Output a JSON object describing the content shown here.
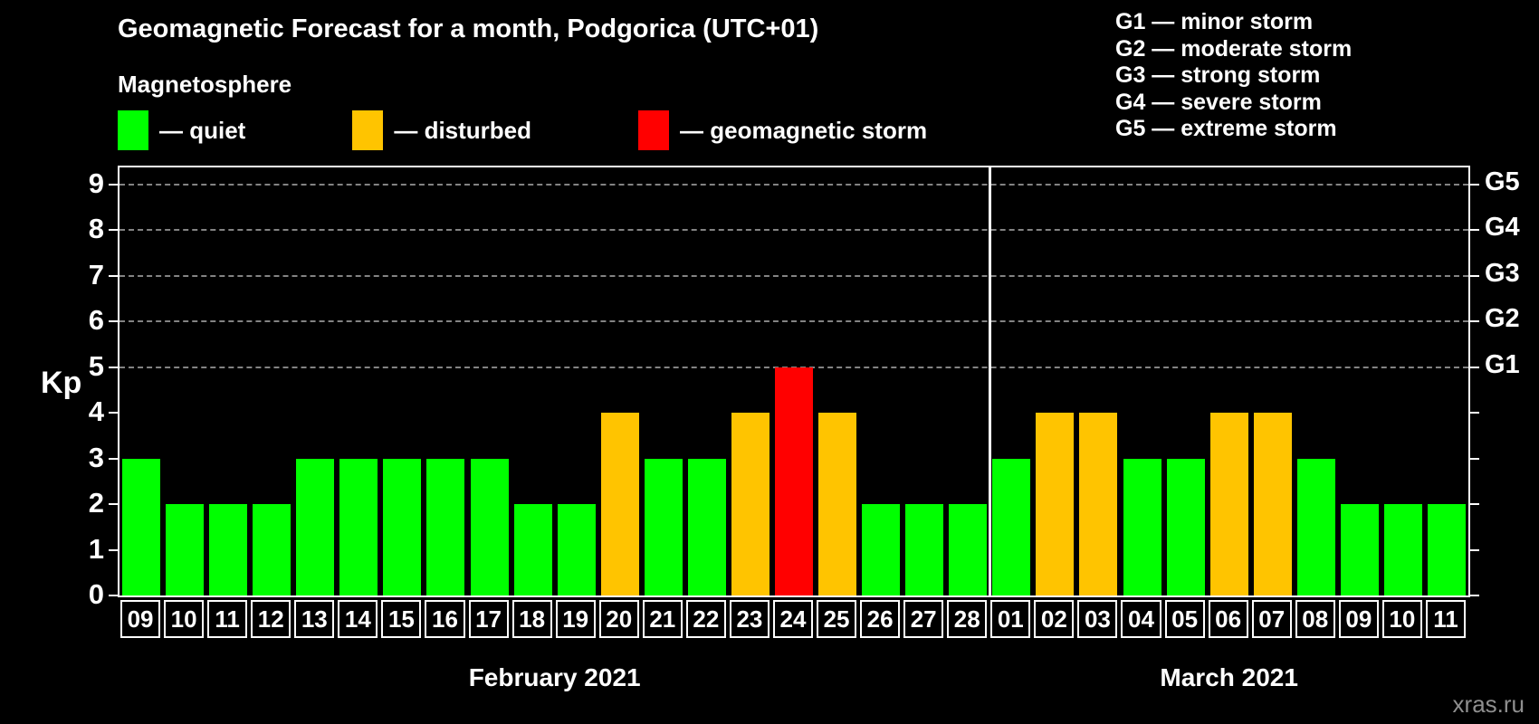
{
  "title": "Geomagnetic Forecast for a month, Podgorica (UTC+01)",
  "subtitle": "Magnetosphere",
  "legend": {
    "items": [
      {
        "name": "quiet",
        "label": "— quiet",
        "color": "#00ff00"
      },
      {
        "name": "disturbed",
        "label": "— disturbed",
        "color": "#ffc400"
      },
      {
        "name": "storm",
        "label": "— geomagnetic storm",
        "color": "#ff0000"
      }
    ]
  },
  "storm_legend": [
    "G1 — minor storm",
    "G2 — moderate storm",
    "G3 — strong storm",
    "G4 — severe storm",
    "G5 — extreme storm"
  ],
  "watermark": "xras.ru",
  "chart_data": {
    "type": "bar",
    "title": "Geomagnetic Forecast for a month, Podgorica (UTC+01)",
    "ylabel": "Kp",
    "ylim": [
      0,
      9.4
    ],
    "yticks": [
      0,
      1,
      2,
      3,
      4,
      5,
      6,
      7,
      8,
      9
    ],
    "gridlines": [
      5,
      6,
      7,
      8,
      9
    ],
    "grid_style": "dashed",
    "legend_position": "top",
    "right_axis": [
      {
        "kp": 5,
        "label": "G1"
      },
      {
        "kp": 6,
        "label": "G2"
      },
      {
        "kp": 7,
        "label": "G3"
      },
      {
        "kp": 8,
        "label": "G4"
      },
      {
        "kp": 9,
        "label": "G5"
      }
    ],
    "colors": {
      "quiet": "#00ff00",
      "disturbed": "#ffc400",
      "storm": "#ff0000"
    },
    "color_rule": {
      "quiet_max": 3,
      "disturbed_value": 4,
      "storm_min": 5
    },
    "months": [
      {
        "label": "February 2021",
        "categories": [
          "09",
          "10",
          "11",
          "12",
          "13",
          "14",
          "15",
          "16",
          "17",
          "18",
          "19",
          "20",
          "21",
          "22",
          "23",
          "24",
          "25",
          "26",
          "27",
          "28"
        ],
        "values": [
          3,
          2,
          2,
          2,
          3,
          3,
          3,
          3,
          3,
          2,
          2,
          4,
          3,
          3,
          4,
          5,
          4,
          2,
          2,
          2
        ]
      },
      {
        "label": "March 2021",
        "categories": [
          "01",
          "02",
          "03",
          "04",
          "05",
          "06",
          "07",
          "08",
          "09",
          "10",
          "11"
        ],
        "values": [
          3,
          4,
          4,
          3,
          3,
          4,
          4,
          3,
          2,
          2,
          2
        ]
      }
    ]
  }
}
